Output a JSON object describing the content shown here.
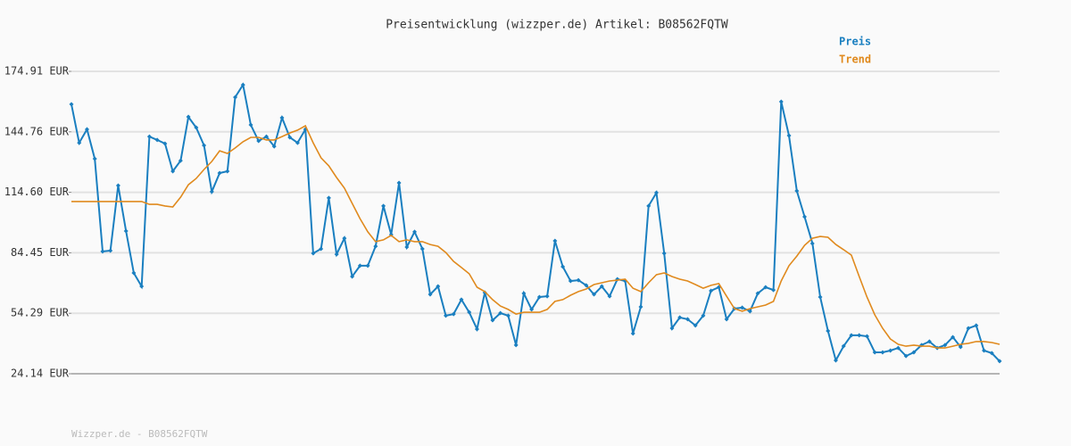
{
  "chart_data": {
    "type": "line",
    "title": "Preisentwicklung (wizzper.de) Artikel: B08562FQTW",
    "footer": "Wizzper.de - B08562FQTW",
    "ylim": [
      24.14,
      174.91
    ],
    "yticks": [
      {
        "value": 24.14,
        "label": "24.14 EUR"
      },
      {
        "value": 54.29,
        "label": "54.29 EUR"
      },
      {
        "value": 84.45,
        "label": "84.45 EUR"
      },
      {
        "value": 114.6,
        "label": "114.60 EUR"
      },
      {
        "value": 144.76,
        "label": "144.76 EUR"
      },
      {
        "value": 174.91,
        "label": "174.91 EUR"
      }
    ],
    "grid": true,
    "series": [
      {
        "name": "Preis",
        "color": "#1a7fc0",
        "markers": true,
        "values": [
          158.5,
          139.3,
          146.0,
          131.3,
          85.1,
          85.5,
          118.0,
          95.3,
          74.4,
          67.7,
          142.4,
          140.7,
          138.9,
          125.1,
          130.4,
          152.2,
          146.9,
          138.0,
          114.9,
          124.2,
          125.1,
          162.0,
          168.2,
          148.2,
          140.2,
          142.4,
          137.5,
          151.8,
          142.0,
          139.3,
          146.0,
          84.2,
          86.4,
          111.8,
          83.7,
          91.7,
          72.6,
          78.0,
          78.0,
          87.7,
          107.8,
          93.5,
          119.3,
          87.3,
          94.9,
          86.4,
          63.7,
          67.7,
          53.1,
          53.9,
          61.1,
          54.8,
          46.4,
          64.6,
          50.8,
          54.4,
          53.1,
          38.4,
          64.2,
          56.2,
          62.4,
          62.8,
          90.4,
          77.5,
          70.4,
          70.8,
          68.2,
          63.7,
          67.7,
          62.8,
          71.3,
          70.4,
          44.2,
          57.5,
          107.8,
          114.4,
          84.2,
          46.8,
          52.2,
          51.3,
          48.2,
          53.1,
          65.5,
          67.3,
          51.3,
          56.6,
          57.1,
          55.3,
          64.2,
          67.3,
          65.9,
          159.8,
          142.9,
          115.3,
          102.4,
          89.1,
          62.4,
          45.5,
          30.8,
          37.9,
          43.3,
          43.3,
          42.8,
          34.8,
          34.8,
          35.7,
          37.0,
          33.0,
          34.8,
          38.4,
          40.2,
          37.0,
          38.4,
          42.4,
          37.5,
          46.8,
          48.2,
          35.7,
          34.4,
          30.4
        ]
      },
      {
        "name": "Trend",
        "color": "#e08a1e",
        "markers": false,
        "values": [
          110.0,
          110.0,
          110.0,
          110.0,
          110.0,
          110.0,
          110.0,
          110.0,
          110.0,
          110.0,
          108.6,
          108.6,
          107.8,
          107.3,
          112.2,
          118.4,
          121.5,
          126.0,
          130.0,
          135.3,
          134.0,
          136.7,
          139.8,
          142.0,
          142.0,
          140.7,
          140.7,
          142.4,
          144.2,
          145.6,
          147.8,
          139.3,
          131.8,
          127.8,
          122.0,
          116.7,
          109.1,
          101.5,
          94.9,
          90.0,
          90.9,
          93.1,
          90.0,
          90.9,
          90.0,
          90.0,
          88.6,
          87.7,
          84.6,
          80.2,
          77.1,
          74.0,
          67.3,
          65.1,
          61.1,
          57.9,
          56.2,
          53.9,
          54.8,
          54.8,
          54.8,
          56.2,
          60.2,
          61.1,
          63.3,
          65.1,
          66.4,
          68.6,
          69.5,
          70.4,
          70.8,
          71.3,
          66.8,
          65.1,
          69.5,
          73.5,
          74.4,
          72.6,
          71.3,
          70.4,
          68.6,
          66.8,
          68.2,
          69.1,
          62.8,
          56.6,
          55.3,
          56.6,
          57.5,
          58.4,
          60.2,
          70.4,
          78.0,
          82.8,
          88.2,
          91.7,
          92.6,
          92.2,
          88.6,
          86.0,
          83.3,
          72.6,
          62.4,
          53.5,
          46.8,
          41.5,
          38.8,
          37.9,
          38.4,
          37.9,
          37.9,
          37.0,
          37.0,
          37.9,
          38.8,
          39.3,
          40.2,
          40.2,
          39.7,
          38.8
        ]
      }
    ]
  }
}
